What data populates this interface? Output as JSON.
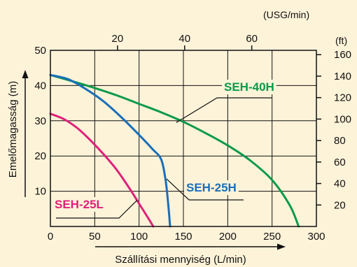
{
  "chart_data": {
    "type": "line",
    "xlabel": "Szállítási mennyiség (L/min)",
    "ylabel": "Emelőmagasság (m)",
    "xlim": [
      0,
      300
    ],
    "ylim": [
      0,
      50
    ],
    "x_ticks": [
      "0",
      "50",
      "100",
      "150",
      "200",
      "250",
      "300"
    ],
    "y_ticks": [
      "10",
      "20",
      "30",
      "40",
      "50"
    ],
    "secondary_x": {
      "unit": "(USG/min)",
      "ticks": [
        {
          "label": "20",
          "value": 20
        },
        {
          "label": "40",
          "value": 40
        },
        {
          "label": "60",
          "value": 60
        }
      ],
      "L_per_unit": 3.785
    },
    "secondary_y": {
      "unit": "(ft)",
      "ticks": [
        {
          "label": "20",
          "value": 20
        },
        {
          "label": "40",
          "value": 40
        },
        {
          "label": "60",
          "value": 60
        },
        {
          "label": "80",
          "value": 80
        },
        {
          "label": "100",
          "value": 100
        },
        {
          "label": "120",
          "value": 120
        },
        {
          "label": "140",
          "value": 140
        },
        {
          "label": "160",
          "value": 160
        }
      ],
      "m_per_unit": 0.3048
    },
    "grid": true,
    "series": [
      {
        "name": "SEH-40H",
        "color": "#0a9a4a",
        "x": [
          0,
          25,
          50,
          75,
          100,
          125,
          150,
          175,
          200,
          225,
          250,
          270,
          280
        ],
        "y": [
          43,
          41.2,
          39.3,
          37.2,
          34.8,
          32.4,
          29.7,
          26.5,
          23,
          18.8,
          13.2,
          6,
          0
        ],
        "label_anchor": [
          142,
          29.5
        ]
      },
      {
        "name": "SEH-25H",
        "color": "#1a6fb8",
        "x": [
          0,
          20,
          40,
          60,
          80,
          100,
          115,
          125,
          130,
          133,
          135
        ],
        "y": [
          43,
          41.8,
          39,
          35.5,
          31,
          26,
          22,
          19,
          13,
          6,
          0
        ],
        "label_anchor": [
          131,
          13.5
        ]
      },
      {
        "name": "SEH-25L",
        "color": "#e0207a",
        "x": [
          0,
          15,
          30,
          45,
          60,
          75,
          90,
          100,
          110,
          116
        ],
        "y": [
          32,
          30.5,
          28,
          24.5,
          20.5,
          16,
          10.5,
          6.5,
          2.5,
          0
        ],
        "label_anchor": [
          98,
          7.5
        ]
      }
    ]
  }
}
